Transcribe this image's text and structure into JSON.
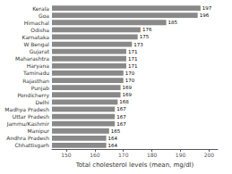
{
  "chart_data": {
    "type": "bar",
    "orientation": "horizontal",
    "xlabel": "Total cholesterol levels (mean, mg/dl)",
    "categories": [
      "Chhattisgarh",
      "Andhra Pradesh",
      "Manipur",
      "Jammu/Kashmir",
      "Uttar Pradesh",
      "Madhya Pradesh",
      "Delhi",
      "Pondicherry",
      "Punjab",
      "Rajasthan",
      "Taminadu",
      "Haryana",
      "Maharashtra",
      "Gujarat",
      "W Bengal",
      "Karnataka",
      "Odisha",
      "Himachal",
      "Goa",
      "Kerala"
    ],
    "values": [
      164,
      164,
      165,
      167,
      167,
      167,
      168,
      169,
      169,
      170,
      170,
      171,
      171,
      171,
      173,
      175,
      176,
      185,
      196,
      197
    ],
    "color": "#898989",
    "xlim": [
      145,
      203
    ],
    "xticks": [
      150,
      160,
      170,
      180,
      190,
      200
    ],
    "grid": false,
    "data_labels": true
  }
}
